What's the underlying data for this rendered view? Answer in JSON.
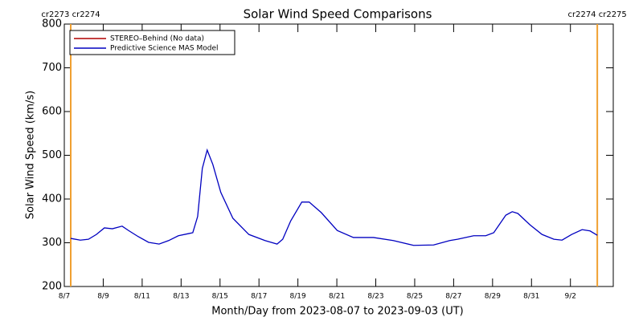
{
  "chart_data": {
    "type": "line",
    "title": "Solar Wind Speed Comparisons",
    "xlabel": "Month/Day from 2023-08-07 to 2023-09-03 (UT)",
    "ylabel": "Solar Wind Speed (km/s)",
    "xlim": [
      0,
      28.2
    ],
    "xticks": [
      {
        "value": 0,
        "label": "8/7"
      },
      {
        "value": 2,
        "label": "8/9"
      },
      {
        "value": 4,
        "label": "8/11"
      },
      {
        "value": 6,
        "label": "8/13"
      },
      {
        "value": 8,
        "label": "8/15"
      },
      {
        "value": 10,
        "label": "8/17"
      },
      {
        "value": 12,
        "label": "8/19"
      },
      {
        "value": 14,
        "label": "8/21"
      },
      {
        "value": 16,
        "label": "8/23"
      },
      {
        "value": 18,
        "label": "8/25"
      },
      {
        "value": 20,
        "label": "8/27"
      },
      {
        "value": 22,
        "label": "8/29"
      },
      {
        "value": 24,
        "label": "8/31"
      },
      {
        "value": 26,
        "label": "9/2"
      }
    ],
    "ylim": [
      200,
      800
    ],
    "yticks": [
      200,
      300,
      400,
      500,
      600,
      700,
      800
    ],
    "boundaries": [
      {
        "x": 0.33,
        "label": "cr2273 cr2274",
        "color": "#f0a030"
      },
      {
        "x": 27.38,
        "label": "cr2274 cr2275",
        "color": "#f0a030"
      }
    ],
    "legend": "upper left",
    "x": [
      0.33,
      0.82,
      1.24,
      1.65,
      2.06,
      2.47,
      2.97,
      3.3,
      3.8,
      4.33,
      4.87,
      5.36,
      5.86,
      6.39,
      6.6,
      6.85,
      7.09,
      7.34,
      7.63,
      8.04,
      8.66,
      9.48,
      10.31,
      10.93,
      11.22,
      11.63,
      12.2,
      12.58,
      13.2,
      14.02,
      14.85,
      15.88,
      16.9,
      17.94,
      18.97,
      19.8,
      20.2,
      21.03,
      21.65,
      22.06,
      22.68,
      23.01,
      23.3,
      23.92,
      24.54,
      25.15,
      25.57,
      26.06,
      26.6,
      27.01,
      27.38
    ],
    "series": [
      {
        "name": "STEREO–Behind (No data)",
        "color": "#b00000",
        "values": [
          null,
          null,
          null,
          null,
          null,
          null,
          null,
          null,
          null,
          null,
          null,
          null,
          null,
          null,
          null,
          null,
          null,
          null,
          null,
          null,
          null,
          null,
          null,
          null,
          null,
          null,
          null,
          null,
          null,
          null,
          null,
          null,
          null,
          null,
          null,
          null,
          null,
          null,
          null,
          null,
          null,
          null,
          null,
          null,
          null,
          null,
          null,
          null,
          null,
          null,
          null
        ]
      },
      {
        "name": "Predictive Science MAS Model",
        "color": "#0000c0",
        "values": [
          310,
          306,
          308,
          319,
          334,
          332,
          338,
          328,
          314,
          301,
          297,
          305,
          316,
          321,
          323,
          360,
          470,
          512,
          479,
          415,
          356,
          319,
          305,
          297,
          308,
          350,
          393,
          393,
          369,
          328,
          312,
          312,
          305,
          294,
          295,
          305,
          308,
          316,
          316,
          323,
          363,
          371,
          367,
          341,
          319,
          308,
          306,
          319,
          330,
          327,
          317
        ]
      }
    ]
  }
}
